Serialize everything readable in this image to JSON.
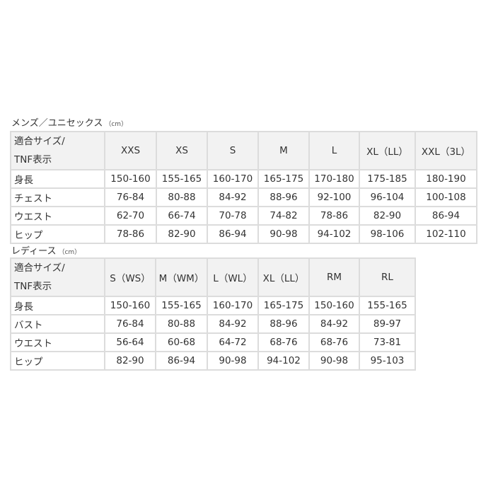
{
  "mens": {
    "title": "メンズ／ユニセックス",
    "unit": "（cm）",
    "header_label_line1": "適合サイズ/",
    "header_label_line2": "TNF表示",
    "sizes": [
      "XXS",
      "XS",
      "S",
      "M",
      "L",
      "XL（LL）",
      "XXL（3L）"
    ],
    "rows": [
      {
        "label": "身長",
        "values": [
          "150-160",
          "155-165",
          "160-170",
          "165-175",
          "170-180",
          "175-185",
          "180-190"
        ]
      },
      {
        "label": "チェスト",
        "values": [
          "76-84",
          "80-88",
          "84-92",
          "88-96",
          "92-100",
          "96-104",
          "100-108"
        ]
      },
      {
        "label": "ウエスト",
        "values": [
          "62-70",
          "66-74",
          "70-78",
          "74-82",
          "78-86",
          "82-90",
          "86-94"
        ]
      },
      {
        "label": "ヒップ",
        "values": [
          "78-86",
          "82-90",
          "86-94",
          "90-98",
          "94-102",
          "98-106",
          "102-110"
        ]
      }
    ]
  },
  "ladies": {
    "title": "レディース",
    "unit": "（cm）",
    "header_label_line1": "適合サイズ/",
    "header_label_line2": "TNF表示",
    "sizes": [
      "S（WS）",
      "M（WM）",
      "L（WL）",
      "XL（LL）",
      "RM",
      "RL"
    ],
    "rows": [
      {
        "label": "身長",
        "values": [
          "150-160",
          "155-165",
          "160-170",
          "165-175",
          "150-160",
          "155-165"
        ]
      },
      {
        "label": "バスト",
        "values": [
          "76-84",
          "80-88",
          "84-92",
          "88-96",
          "84-92",
          "89-97"
        ]
      },
      {
        "label": "ウエスト",
        "values": [
          "56-64",
          "60-68",
          "64-72",
          "68-76",
          "68-76",
          "73-81"
        ]
      },
      {
        "label": "ヒップ",
        "values": [
          "82-90",
          "86-94",
          "90-98",
          "94-102",
          "90-98",
          "95-103"
        ]
      }
    ]
  }
}
